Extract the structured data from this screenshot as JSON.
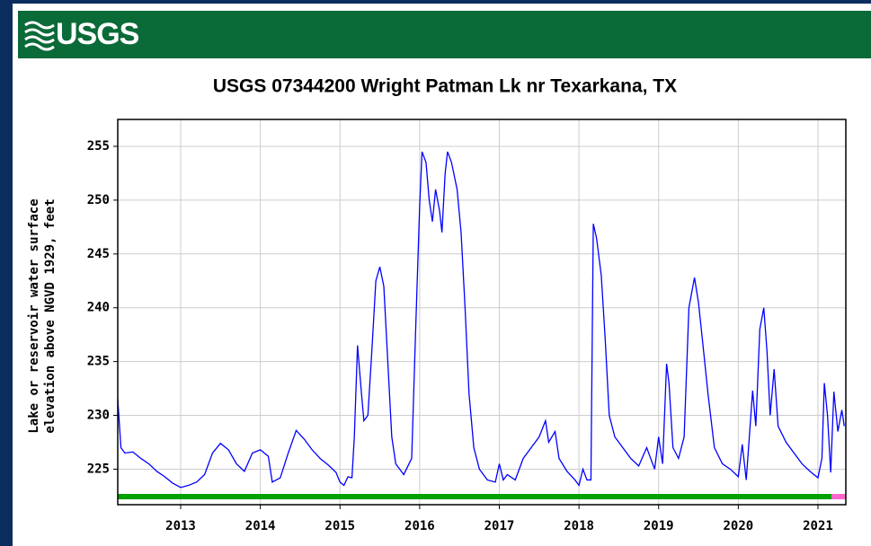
{
  "header": {
    "logo_text": "USGS"
  },
  "chart_data": {
    "type": "line",
    "title": "USGS 07344200 Wright Patman Lk nr Texarkana, TX",
    "y_label": [
      "Lake or reservoir water surface",
      "elevation above NGVD 1929, feet"
    ],
    "x": [
      2012.21,
      2012.25,
      2012.3,
      2012.4,
      2012.5,
      2012.6,
      2012.7,
      2012.8,
      2012.9,
      2013.0,
      2013.1,
      2013.2,
      2013.3,
      2013.4,
      2013.5,
      2013.6,
      2013.7,
      2013.8,
      2013.9,
      2014.0,
      2014.1,
      2014.15,
      2014.25,
      2014.35,
      2014.45,
      2014.55,
      2014.65,
      2014.75,
      2014.85,
      2014.95,
      2015.0,
      2015.05,
      2015.1,
      2015.15,
      2015.18,
      2015.22,
      2015.27,
      2015.3,
      2015.35,
      2015.4,
      2015.45,
      2015.5,
      2015.55,
      2015.6,
      2015.65,
      2015.7,
      2015.8,
      2015.9,
      2015.95,
      2016.0,
      2016.03,
      2016.08,
      2016.12,
      2016.16,
      2016.2,
      2016.25,
      2016.28,
      2016.32,
      2016.35,
      2016.4,
      2016.47,
      2016.52,
      2016.57,
      2016.62,
      2016.68,
      2016.75,
      2016.85,
      2016.95,
      2017.0,
      2017.05,
      2017.1,
      2017.2,
      2017.3,
      2017.4,
      2017.5,
      2017.58,
      2017.62,
      2017.7,
      2017.75,
      2017.85,
      2017.95,
      2018.0,
      2018.05,
      2018.1,
      2018.15,
      2018.18,
      2018.22,
      2018.28,
      2018.33,
      2018.38,
      2018.45,
      2018.55,
      2018.65,
      2018.75,
      2018.85,
      2018.9,
      2018.95,
      2019.0,
      2019.05,
      2019.1,
      2019.13,
      2019.18,
      2019.25,
      2019.32,
      2019.38,
      2019.45,
      2019.5,
      2019.55,
      2019.62,
      2019.7,
      2019.8,
      2019.9,
      2020.0,
      2020.05,
      2020.1,
      2020.18,
      2020.22,
      2020.27,
      2020.32,
      2020.36,
      2020.4,
      2020.45,
      2020.5,
      2020.6,
      2020.7,
      2020.8,
      2020.9,
      2021.0,
      2021.05,
      2021.08,
      2021.12,
      2021.16,
      2021.2,
      2021.25,
      2021.3,
      2021.33
    ],
    "series": [
      {
        "color": "#0000ff",
        "values": [
          231.5,
          227,
          226.5,
          226.6,
          226,
          225.5,
          224.8,
          224.3,
          223.7,
          223.3,
          223.5,
          223.8,
          224.5,
          226.5,
          227.4,
          226.8,
          225.5,
          224.8,
          226.5,
          226.8,
          226.2,
          223.8,
          224.2,
          226.5,
          228.6,
          227.8,
          226.8,
          226,
          225.4,
          224.7,
          223.8,
          223.5,
          224.3,
          224.2,
          228,
          236.5,
          232,
          229.5,
          230,
          236,
          242.5,
          243.8,
          242,
          235,
          228,
          225.5,
          224.5,
          226,
          238,
          249.5,
          254.5,
          253.5,
          250,
          248,
          251,
          249,
          247,
          252.5,
          254.5,
          253.5,
          251,
          247,
          240,
          232,
          227,
          225,
          224,
          223.8,
          225.5,
          224,
          224.5,
          224,
          226,
          227,
          228,
          229.5,
          227.5,
          228.5,
          226,
          224.8,
          224,
          223.5,
          225,
          224,
          224,
          247.8,
          246.5,
          243,
          237,
          230,
          228,
          227,
          226,
          225.3,
          227,
          226,
          225,
          228,
          225.5,
          234.8,
          233,
          227,
          226,
          228,
          240,
          242.8,
          240.5,
          237,
          232,
          227,
          225.5,
          225,
          224.3,
          227.3,
          224,
          232.3,
          229,
          238,
          240,
          236,
          230,
          234.3,
          229,
          227.5,
          226.5,
          225.5,
          224.8,
          224.2,
          226,
          233,
          230,
          224.7,
          232.2,
          228.5,
          230.5,
          229
        ]
      }
    ],
    "xlim": [
      2012.21,
      2021.35
    ],
    "ylim": [
      221.7,
      257.5
    ],
    "xticks": [
      2013,
      2014,
      2015,
      2016,
      2017,
      2018,
      2019,
      2020,
      2021
    ],
    "yticks": [
      225,
      230,
      235,
      240,
      245,
      250,
      255
    ],
    "grid": true
  }
}
